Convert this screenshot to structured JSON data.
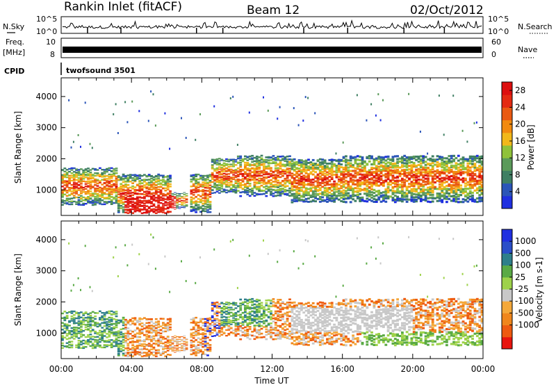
{
  "header": {
    "station": "Rankin Inlet (fitACF)",
    "beam": "Beam 12",
    "date": "02/Oct/2012"
  },
  "left_labels": {
    "nsky": "N.Sky",
    "freq_line1": "Freq.",
    "freq_line2": "[MHz]",
    "cpid": "CPID"
  },
  "right_labels": {
    "nsearch": "N.Search",
    "nave": "Nave"
  },
  "cpid_name": "twofsound 3501",
  "colors": {
    "power": [
      "#1f2fe0",
      "#2b55b8",
      "#3f7f63",
      "#5b9a5a",
      "#8fc23a",
      "#f2b81a",
      "#f28a0f",
      "#ea5a12",
      "#e42a12",
      "#dd0f0f"
    ],
    "velocity": [
      "#e8140e",
      "#ee5a10",
      "#f0861c",
      "#f4a83a",
      "#c8c8c8",
      "#9ed24a",
      "#5aaa45",
      "#2e7f8a",
      "#2a4ec8",
      "#1f2fe0"
    ]
  },
  "chart_data": [
    {
      "type": "line",
      "panel": "noise",
      "ylabels_left": [
        "10^5",
        "10^0"
      ],
      "ylabels_right": [
        "10^5",
        "10^0"
      ]
    },
    {
      "type": "line",
      "panel": "frequency",
      "ylabels_left": [
        "10",
        "8"
      ],
      "ylabels_right": [
        "60",
        "0"
      ]
    },
    {
      "type": "heatmap",
      "panel": "power",
      "xlabel": "",
      "ylabel": "Slant Range [km]",
      "yticks": [
        "1000",
        "2000",
        "3000",
        "4000"
      ],
      "ylim": [
        180,
        4600
      ],
      "xlim": [
        0,
        24
      ],
      "colorbar_label": "Power [dB]",
      "colorbar_ticks": [
        "4",
        "8",
        "12",
        "16",
        "20",
        "24",
        "28"
      ],
      "colorbar_range": [
        0,
        30
      ]
    },
    {
      "type": "heatmap",
      "panel": "velocity",
      "ylabel": "Slant Range [km]",
      "xlabel": "Time UT",
      "xticks": [
        "00:00",
        "04:00",
        "08:00",
        "12:00",
        "16:00",
        "20:00",
        "00:00"
      ],
      "yticks": [
        "1000",
        "2000",
        "3000",
        "4000"
      ],
      "ylim": [
        180,
        4600
      ],
      "xlim": [
        0,
        24
      ],
      "colorbar_label": "Velocity [m s-1]",
      "colorbar_ticks": [
        "1000",
        "500",
        "100",
        "25",
        "-25",
        "-100",
        "-500",
        "-1000"
      ]
    }
  ]
}
